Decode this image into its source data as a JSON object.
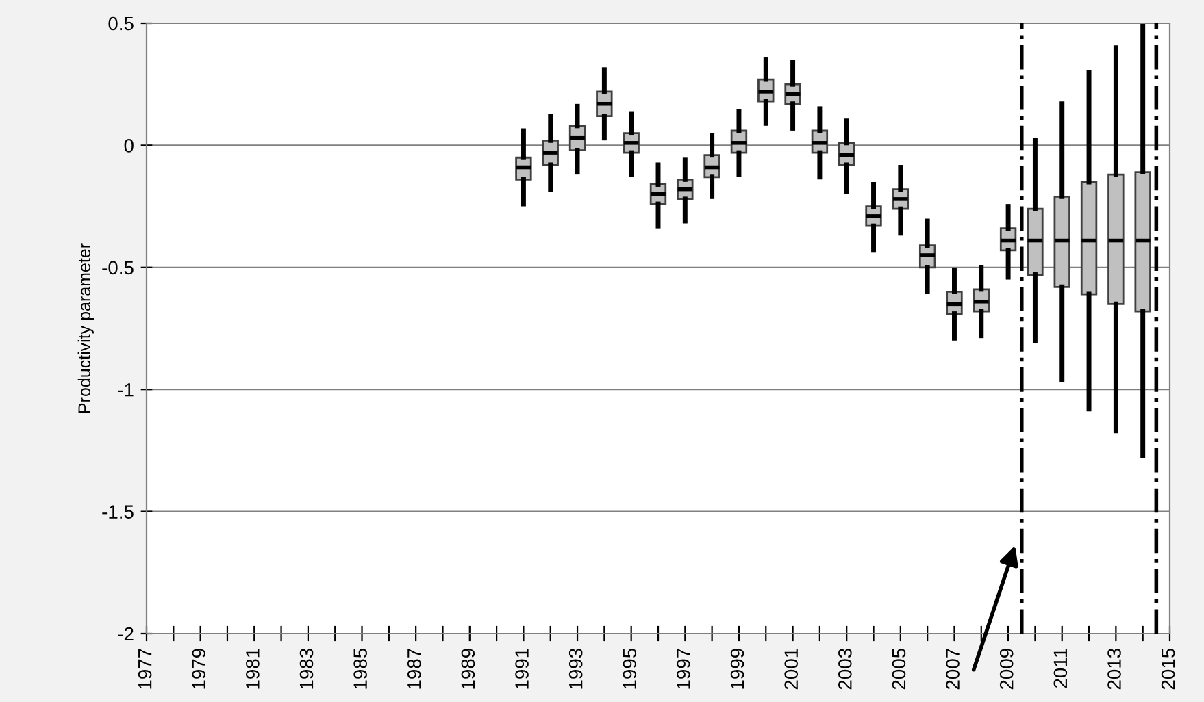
{
  "chart_data": {
    "type": "box",
    "ylabel": "Productivity parameter",
    "x": [
      1991,
      1992,
      1993,
      1994,
      1995,
      1996,
      1997,
      1998,
      1999,
      2000,
      2001,
      2002,
      2003,
      2004,
      2005,
      2006,
      2007,
      2008,
      2009,
      2010,
      2011,
      2012,
      2013,
      2014
    ],
    "boxes": [
      {
        "low": -0.24,
        "q1": -0.14,
        "median": -0.09,
        "q3": -0.05,
        "high": 0.06
      },
      {
        "low": -0.18,
        "q1": -0.08,
        "median": -0.03,
        "q3": 0.02,
        "high": 0.12
      },
      {
        "low": -0.11,
        "q1": -0.02,
        "median": 0.03,
        "q3": 0.08,
        "high": 0.16
      },
      {
        "low": 0.03,
        "q1": 0.12,
        "median": 0.17,
        "q3": 0.22,
        "high": 0.31
      },
      {
        "low": -0.12,
        "q1": -0.03,
        "median": 0.01,
        "q3": 0.05,
        "high": 0.13
      },
      {
        "low": -0.33,
        "q1": -0.24,
        "median": -0.2,
        "q3": -0.16,
        "high": -0.08
      },
      {
        "low": -0.31,
        "q1": -0.22,
        "median": -0.18,
        "q3": -0.14,
        "high": -0.06
      },
      {
        "low": -0.21,
        "q1": -0.13,
        "median": -0.09,
        "q3": -0.04,
        "high": 0.04
      },
      {
        "low": -0.12,
        "q1": -0.03,
        "median": 0.01,
        "q3": 0.06,
        "high": 0.14
      },
      {
        "low": 0.09,
        "q1": 0.18,
        "median": 0.22,
        "q3": 0.27,
        "high": 0.35
      },
      {
        "low": 0.07,
        "q1": 0.17,
        "median": 0.21,
        "q3": 0.25,
        "high": 0.34
      },
      {
        "low": -0.13,
        "q1": -0.03,
        "median": 0.01,
        "q3": 0.06,
        "high": 0.15
      },
      {
        "low": -0.19,
        "q1": -0.08,
        "median": -0.04,
        "q3": 0.01,
        "high": 0.1
      },
      {
        "low": -0.43,
        "q1": -0.33,
        "median": -0.29,
        "q3": -0.25,
        "high": -0.16
      },
      {
        "low": -0.36,
        "q1": -0.26,
        "median": -0.22,
        "q3": -0.18,
        "high": -0.09
      },
      {
        "low": -0.6,
        "q1": -0.5,
        "median": -0.45,
        "q3": -0.41,
        "high": -0.31
      },
      {
        "low": -0.79,
        "q1": -0.69,
        "median": -0.65,
        "q3": -0.6,
        "high": -0.51
      },
      {
        "low": -0.78,
        "q1": -0.68,
        "median": -0.64,
        "q3": -0.59,
        "high": -0.5
      },
      {
        "low": -0.54,
        "q1": -0.43,
        "median": -0.39,
        "q3": -0.34,
        "high": -0.25
      },
      {
        "low": -0.8,
        "q1": -0.53,
        "median": -0.39,
        "q3": -0.26,
        "high": 0.02
      },
      {
        "low": -0.96,
        "q1": -0.58,
        "median": -0.39,
        "q3": -0.21,
        "high": 0.17
      },
      {
        "low": -1.08,
        "q1": -0.61,
        "median": -0.39,
        "q3": -0.15,
        "high": 0.3
      },
      {
        "low": -1.17,
        "q1": -0.65,
        "median": -0.39,
        "q3": -0.12,
        "high": 0.4
      },
      {
        "low": -1.27,
        "q1": -0.68,
        "median": -0.39,
        "q3": -0.11,
        "high": 0.5
      }
    ],
    "color": "#c0c0c0",
    "xlim": [
      1977,
      2015
    ],
    "xticks": [
      1977,
      {
        "value": 1978,
        "label": null
      },
      1979,
      {
        "value": 1980,
        "label": null
      },
      1981,
      {
        "value": 1982,
        "label": null
      },
      1983,
      {
        "value": 1984,
        "label": null
      },
      1985,
      {
        "value": 1986,
        "label": null
      },
      1987,
      {
        "value": 1988,
        "label": null
      },
      1989,
      {
        "value": 1990,
        "label": null
      },
      1991,
      {
        "value": 1992,
        "label": null
      },
      1993,
      {
        "value": 1994,
        "label": null
      },
      1995,
      {
        "value": 1996,
        "label": null
      },
      1997,
      {
        "value": 1998,
        "label": null
      },
      1999,
      {
        "value": 2000,
        "label": null
      },
      2001,
      {
        "value": 2002,
        "label": null
      },
      2003,
      {
        "value": 2004,
        "label": null
      },
      2005,
      {
        "value": 2006,
        "label": null
      },
      2007,
      {
        "value": 2008,
        "label": null
      },
      2009,
      {
        "value": 2010,
        "label": null
      },
      2011,
      {
        "value": 2012,
        "label": null
      },
      2013,
      {
        "value": 2014,
        "label": null
      },
      2015
    ],
    "ylim": [
      -2,
      0.5
    ],
    "yticks": [
      -2,
      -1.5,
      -1,
      -0.5,
      0,
      0.5
    ],
    "grid": "y",
    "ref_lines": [
      {
        "axis": "x",
        "value": 2009.5,
        "line_style": "dashdot"
      },
      {
        "axis": "x",
        "value": 2014.5,
        "line_style": "dashdot"
      }
    ]
  }
}
